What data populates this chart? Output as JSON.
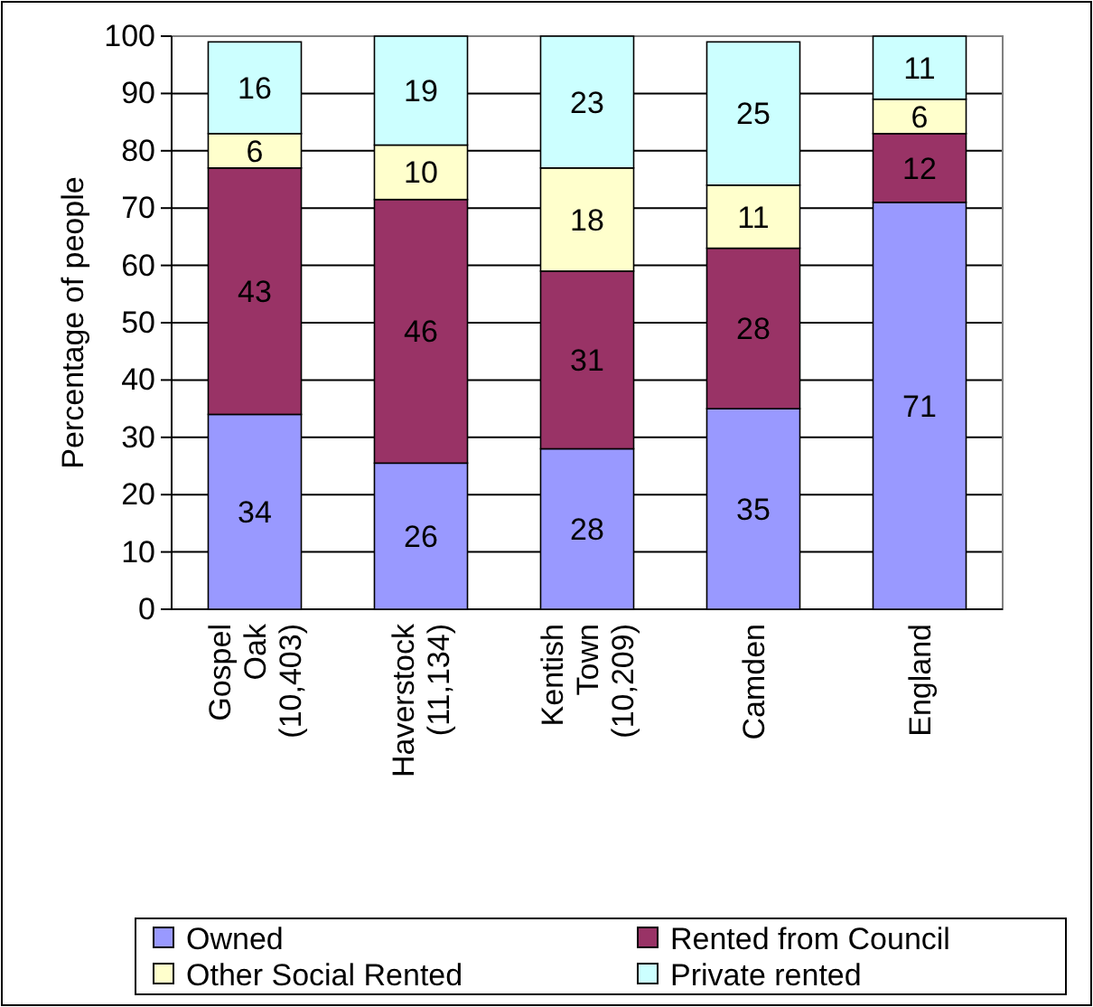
{
  "chart_data": {
    "type": "bar",
    "stacked": true,
    "ylabel": "Percentage of people",
    "categories": [
      "Gospel\nOak\n(10,403)",
      "Haverstock\n(11,134)",
      "Kentish\nTown\n(10,209)",
      "Camden",
      "England"
    ],
    "series": [
      {
        "name": "Owned",
        "color": "#9999ff",
        "values": [
          34,
          25.5,
          28,
          35,
          71
        ],
        "value_labels": [
          "34",
          "26",
          "28",
          "35",
          "71"
        ]
      },
      {
        "name": "Rented from Council",
        "color": "#993366",
        "values": [
          43,
          46,
          31,
          28,
          12
        ],
        "value_labels": [
          "43",
          "46",
          "31",
          "28",
          "12"
        ]
      },
      {
        "name": "Other Social Rented",
        "color": "#ffffcc",
        "values": [
          6,
          9.5,
          18,
          11,
          6
        ],
        "value_labels": [
          "6",
          "10",
          "18",
          "11",
          "6"
        ]
      },
      {
        "name": "Private rented",
        "color": "#ccffff",
        "values": [
          16,
          19,
          23,
          25,
          11
        ],
        "value_labels": [
          "16",
          "19",
          "23",
          "25",
          "11"
        ]
      }
    ],
    "ylim": [
      0,
      100
    ],
    "yticks": [
      0,
      10,
      20,
      30,
      40,
      50,
      60,
      70,
      80,
      90,
      100
    ],
    "grid": "y",
    "legend": "bottom"
  }
}
